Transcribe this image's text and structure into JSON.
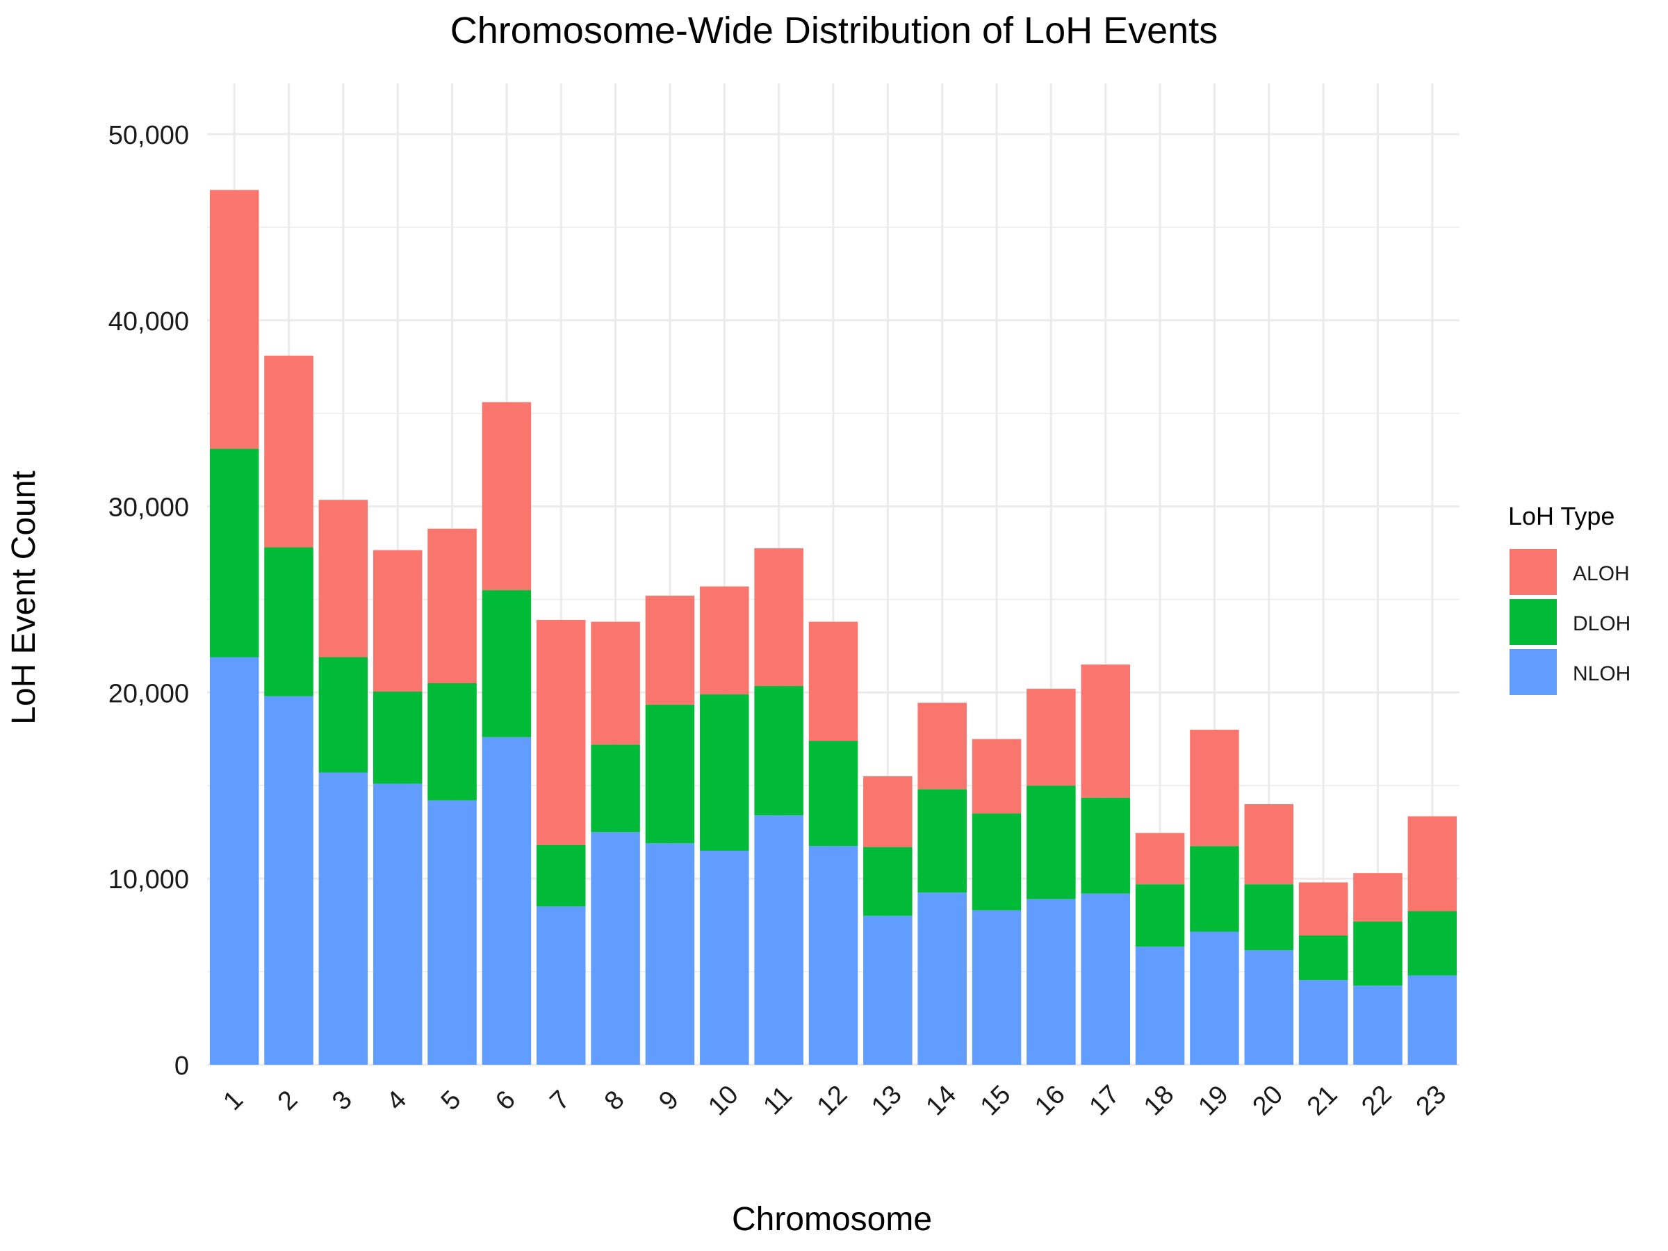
{
  "chart_data": {
    "type": "bar",
    "stacked": true,
    "title": "Chromosome-Wide Distribution of LoH Events",
    "xlabel": "Chromosome",
    "ylabel": "LoH Event Count",
    "ylim": [
      0,
      52500
    ],
    "yticks": [
      0,
      10000,
      20000,
      30000,
      40000,
      50000
    ],
    "ytick_labels": [
      "0",
      "10,000",
      "20,000",
      "30,000",
      "40,000",
      "50,000"
    ],
    "grid": true,
    "legend_position": "right",
    "legend_title": "LoH Type",
    "categories": [
      "1",
      "2",
      "3",
      "4",
      "5",
      "6",
      "7",
      "8",
      "9",
      "10",
      "11",
      "12",
      "13",
      "14",
      "15",
      "16",
      "17",
      "18",
      "19",
      "20",
      "21",
      "22",
      "23"
    ],
    "series": [
      {
        "name": "NLOH",
        "color": "#619CFF",
        "values": [
          21900,
          19800,
          15700,
          15100,
          14200,
          17600,
          8500,
          12500,
          11900,
          11500,
          13400,
          11750,
          8000,
          9250,
          8300,
          8900,
          9200,
          6350,
          7150,
          6150,
          4550,
          4250,
          4800
        ]
      },
      {
        "name": "DLOH",
        "color": "#00BA38",
        "values": [
          11200,
          8000,
          6200,
          4950,
          6300,
          7900,
          3300,
          4700,
          7450,
          8400,
          6950,
          5650,
          3700,
          5550,
          5200,
          6100,
          5150,
          3350,
          4600,
          3550,
          2400,
          3450,
          3450
        ]
      },
      {
        "name": "ALOH",
        "color": "#F8766D",
        "values": [
          13900,
          10300,
          8450,
          7600,
          8300,
          10100,
          12100,
          6600,
          5850,
          5800,
          7400,
          6400,
          3800,
          4650,
          4000,
          5200,
          7150,
          2750,
          6250,
          4300,
          2850,
          2600,
          5100
        ]
      }
    ]
  }
}
